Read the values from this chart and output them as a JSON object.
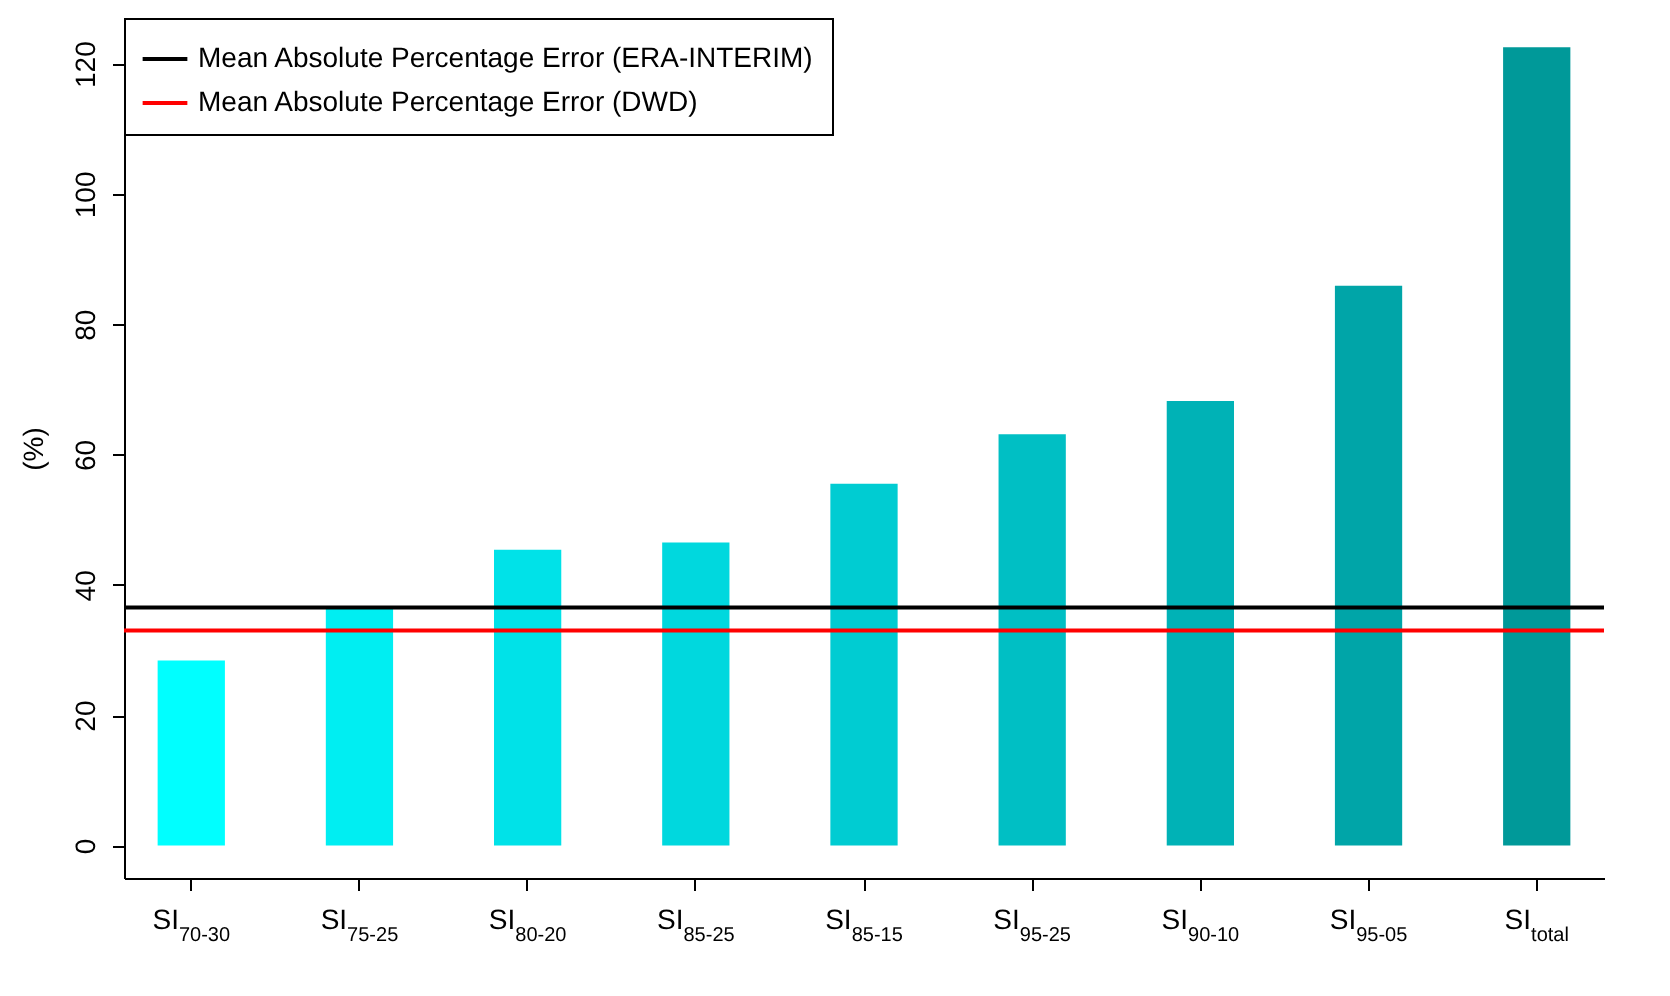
{
  "chart_data": {
    "type": "bar",
    "ylabel": "(%)",
    "categories": [
      "SI$_{70-30}$",
      "SI$_{75-25}$",
      "SI$_{80-20}$",
      "SI$_{85-25}$",
      "SI$_{85-15}$",
      "SI$_{95-25}$",
      "SI$_{90-10}$",
      "SI$_{95-05}$",
      "SI$_{total}$"
    ],
    "values": [
      28.4,
      36.6,
      45.4,
      46.5,
      55.5,
      63.1,
      68.2,
      85.9,
      122.5
    ],
    "colors": [
      "#00ffff",
      "#00eef2",
      "#00e2e8",
      "#00d8de",
      "#00ccd2",
      "#00bfc4",
      "#00b2b6",
      "#00a5a8",
      "#009999"
    ],
    "ylim": [
      -5,
      127
    ],
    "yticks": [
      0,
      20,
      40,
      60,
      80,
      100,
      120
    ],
    "ref_lines": [
      {
        "axis": "y",
        "value": 36.5,
        "label": "Mean Absolute Percentage Error (ERA-INTERIM)",
        "color": "#000000",
        "line_style": "solid"
      },
      {
        "axis": "y",
        "value": 33.0,
        "label": "Mean Absolute Percentage Error (DWD)",
        "color": "#ff0000",
        "line_style": "solid"
      }
    ],
    "legend": "top left"
  }
}
